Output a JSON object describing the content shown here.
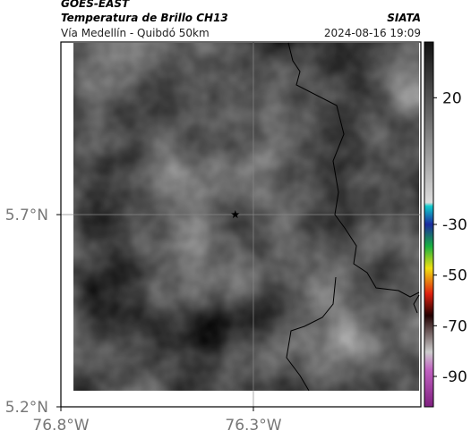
{
  "header": {
    "title": "GOES-EAST",
    "subtitle": "Temperatura de Brillo CH13",
    "source": "SIATA",
    "route": "Vía Medellín - Quibdó 50km",
    "timestamp": "2024-08-16 19:09"
  },
  "map": {
    "xlim": [
      -76.8,
      -75.865
    ],
    "ylim": [
      5.2,
      6.149
    ],
    "xticks": [
      {
        "value": -76.8,
        "label": "76.8°W"
      },
      {
        "value": -76.3,
        "label": "76.3°W"
      }
    ],
    "yticks": [
      {
        "value": 5.7,
        "label": "5.7°N"
      },
      {
        "value": 5.2,
        "label": "5.2°N"
      }
    ],
    "grid": true,
    "marker": {
      "lon": -76.347,
      "lat": 5.7
    }
  },
  "colorbar": {
    "clim": [
      -102,
      42
    ],
    "ticks": [
      20,
      -30,
      -50,
      -70,
      -90
    ]
  }
}
